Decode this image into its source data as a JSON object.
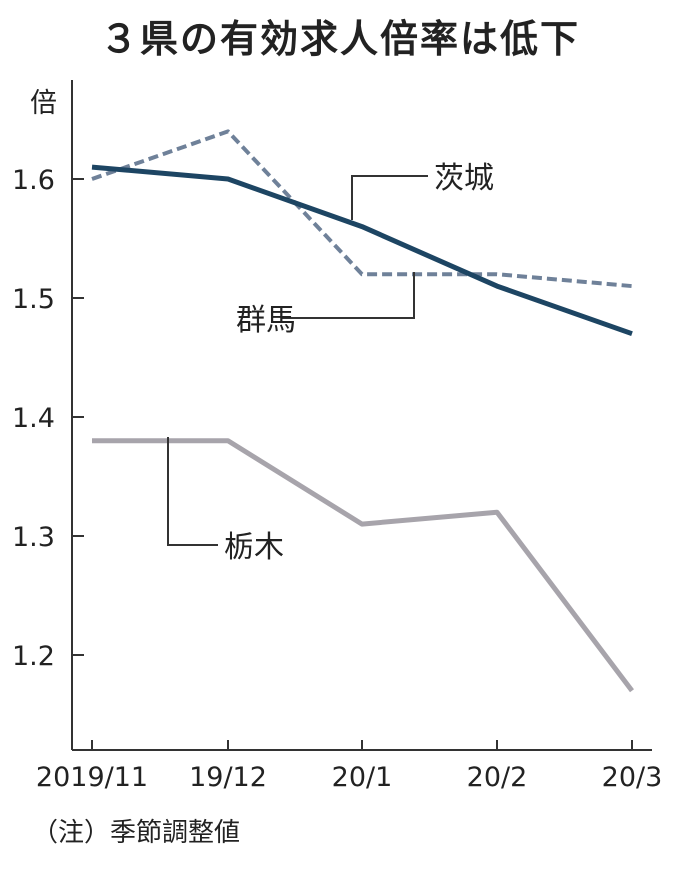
{
  "chart_data": {
    "type": "line",
    "title": "３県の有効求人倍率は低下",
    "ylabel": "倍",
    "xlabel": "",
    "categories": [
      "2019/11",
      "19/12",
      "20/1",
      "20/2",
      "20/3"
    ],
    "ylim": [
      1.1,
      1.7
    ],
    "yticks": [
      1.2,
      1.3,
      1.4,
      1.5,
      1.6
    ],
    "ytick_labels": [
      "1.2",
      "1.3",
      "1.4",
      "1.5",
      "1.6"
    ],
    "series": [
      {
        "name": "茨城",
        "values": [
          1.61,
          1.6,
          1.56,
          1.51,
          1.47
        ],
        "color": "#1d4563",
        "style": "solid"
      },
      {
        "name": "群馬",
        "values": [
          1.6,
          1.64,
          1.52,
          1.52,
          1.51
        ],
        "color": "#6f8199",
        "style": "dashed"
      },
      {
        "name": "栃木",
        "values": [
          1.38,
          1.38,
          1.31,
          1.32,
          1.17
        ],
        "color": "#a7a4ab",
        "style": "solid"
      }
    ],
    "note": "（注）季節調整値"
  }
}
